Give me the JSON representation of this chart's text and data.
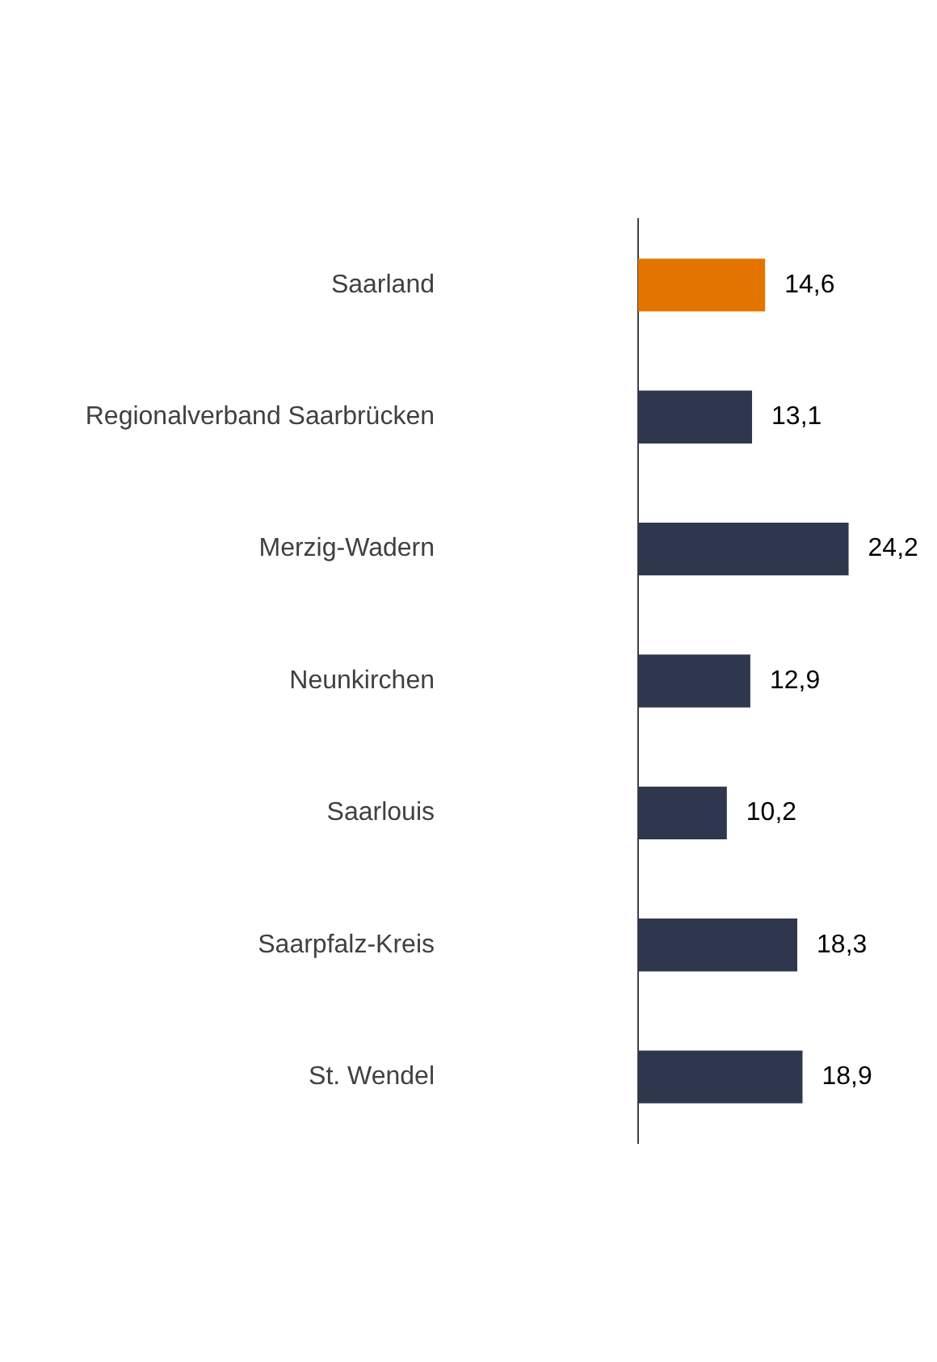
{
  "chart_data": {
    "type": "bar",
    "orientation": "horizontal",
    "categories": [
      "Saarland",
      "Regionalverband Saarbrücken",
      "Merzig-Wadern",
      "Neunkirchen",
      "Saarlouis",
      "Saarpfalz-Kreis",
      "St. Wendel"
    ],
    "values": [
      14.6,
      13.1,
      24.2,
      12.9,
      10.2,
      18.3,
      18.9
    ],
    "colors": [
      "#e37400",
      "#2f374f",
      "#2f374f",
      "#2f374f",
      "#2f374f",
      "#2f374f",
      "#2f374f"
    ],
    "value_labels": [
      "14,6",
      "13,1",
      "24,2",
      "12,9",
      "10,2",
      "18,3",
      "18,9"
    ],
    "grid": false,
    "legend": false
  }
}
